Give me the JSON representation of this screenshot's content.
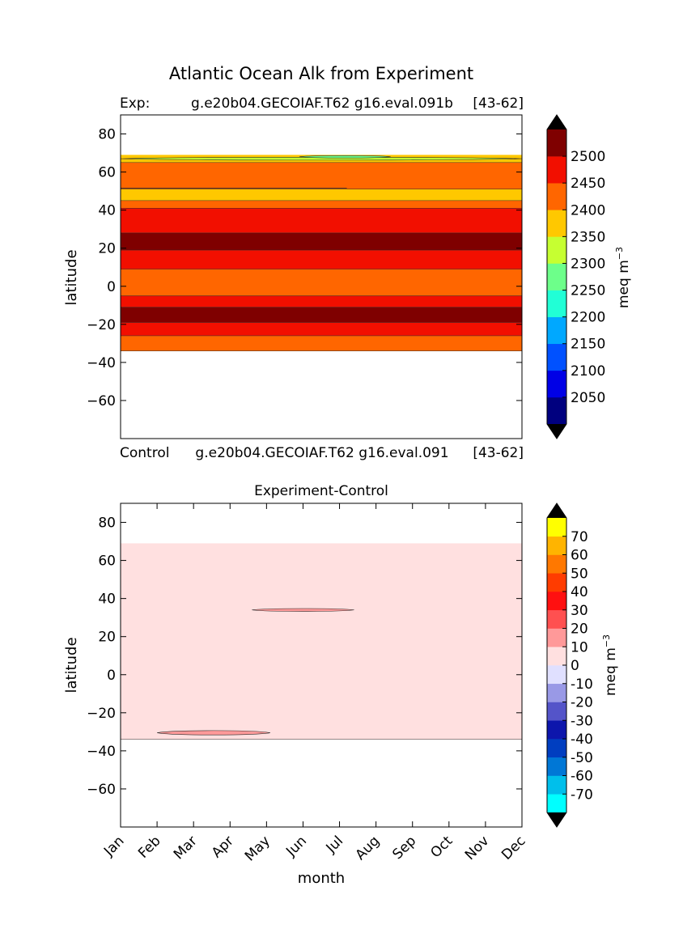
{
  "figure": {
    "title": "Atlantic Ocean Alk from Experiment"
  },
  "colors": {
    "frame": "#000000",
    "contour_line": "#2a2a2a",
    "extend_arrow": "#000000"
  },
  "chart_data": [
    {
      "type": "contourf",
      "title_left": "Exp:",
      "title_center": "g.e20b04.GECOIAF.T62 g16.eval.091b",
      "title_right": "[43-62]",
      "footer_left": "Control",
      "footer_center": "g.e20b04.GECOIAF.T62 g16.eval.091",
      "footer_right": "[43-62]",
      "xlabel": "",
      "ylabel": "latitude",
      "xlim": [
        0,
        11
      ],
      "ylim": [
        -80,
        90
      ],
      "yticks": [
        80,
        60,
        40,
        20,
        0,
        -20,
        -40,
        -60
      ],
      "ytick_labels": [
        "80",
        "60",
        "40",
        "20",
        "0",
        "−20",
        "−40",
        "−60"
      ],
      "colorbar": {
        "label": "meq m",
        "label_exponent": "−3",
        "levels": [
          2000,
          2050,
          2100,
          2150,
          2200,
          2250,
          2300,
          2350,
          2400,
          2450,
          2500,
          2550
        ],
        "tick_labels": [
          "2050",
          "2100",
          "2150",
          "2200",
          "2250",
          "2300",
          "2350",
          "2400",
          "2450",
          "2500"
        ],
        "colors": [
          "#00007f",
          "#0000e6",
          "#0051ff",
          "#00a8ff",
          "#21ffd6",
          "#6dff8a",
          "#c6ff31",
          "#ffc800",
          "#ff6600",
          "#f20f00",
          "#7f0000"
        ],
        "extend": "both"
      },
      "bands": [
        {
          "lat_min": -34,
          "lat_max": -26,
          "value": 2425
        },
        {
          "lat_min": -26,
          "lat_max": -19,
          "value": 2475
        },
        {
          "lat_min": -19,
          "lat_max": -11,
          "value": 2525
        },
        {
          "lat_min": -11,
          "lat_max": -5,
          "value": 2475
        },
        {
          "lat_min": -5,
          "lat_max": 9,
          "value": 2425
        },
        {
          "lat_min": 9,
          "lat_max": 19,
          "value": 2475
        },
        {
          "lat_min": 19,
          "lat_max": 28,
          "value": 2525
        },
        {
          "lat_min": 28,
          "lat_max": 41,
          "value": 2475
        },
        {
          "lat_min": 41,
          "lat_max": 45,
          "value": 2425
        },
        {
          "lat_min": 45,
          "lat_max": 51,
          "value": 2375
        },
        {
          "lat_min": 51,
          "lat_max": 65,
          "value": 2425
        },
        {
          "lat_min": 65,
          "lat_max": 69,
          "value": 2375
        }
      ],
      "patches": [
        {
          "value": 2325,
          "month_start": 0,
          "month_end": 11,
          "lat_min": 66,
          "lat_max": 68
        },
        {
          "value": 2275,
          "month_start": 4.9,
          "month_end": 7.4,
          "lat_min": 67.2,
          "lat_max": 68.8
        }
      ],
      "contour_lines": [
        {
          "description": "thin 2450 contour near 51N",
          "lat": 51.5,
          "month_start": 0,
          "month_end": 6.2
        }
      ]
    },
    {
      "type": "contourf",
      "title_center": "Experiment-Control",
      "xlabel": "month",
      "ylabel": "latitude",
      "xlim": [
        0,
        11
      ],
      "ylim": [
        -80,
        90
      ],
      "xticks": [
        "Jan",
        "Feb",
        "Mar",
        "Apr",
        "May",
        "Jun",
        "Jul",
        "Aug",
        "Sep",
        "Oct",
        "Nov",
        "Dec"
      ],
      "yticks": [
        80,
        60,
        40,
        20,
        0,
        -20,
        -40,
        -60
      ],
      "ytick_labels": [
        "80",
        "60",
        "40",
        "20",
        "0",
        "−20",
        "−40",
        "−60"
      ],
      "colorbar": {
        "label": "meq m",
        "label_exponent": "−3",
        "levels": [
          -80,
          -70,
          -60,
          -50,
          -40,
          -30,
          -20,
          -10,
          0,
          10,
          20,
          30,
          40,
          50,
          60,
          70,
          80
        ],
        "tick_labels": [
          "-70",
          "-60",
          "-50",
          "-40",
          "-30",
          "-20",
          "-10",
          "0",
          "10",
          "20",
          "30",
          "40",
          "50",
          "60",
          "70"
        ],
        "colors": [
          "#00ffff",
          "#00bfeb",
          "#0077d6",
          "#003ec0",
          "#0d16ac",
          "#5454c9",
          "#9999e6",
          "#e0e0ff",
          "#ffe0e0",
          "#ff9999",
          "#ff5050",
          "#ff1010",
          "#ff3c00",
          "#ff7800",
          "#ffb400",
          "#ffff00"
        ],
        "extend": "both"
      },
      "bands": [
        {
          "lat_min": -34,
          "lat_max": 69,
          "value": 5
        }
      ],
      "patches": [
        {
          "value": 15,
          "month_start": 3.6,
          "month_end": 6.4,
          "lat_min": 33,
          "lat_max": 35
        },
        {
          "value": 15,
          "month_start": 1.0,
          "month_end": 4.1,
          "lat_min": -32,
          "lat_max": -29
        }
      ]
    }
  ]
}
